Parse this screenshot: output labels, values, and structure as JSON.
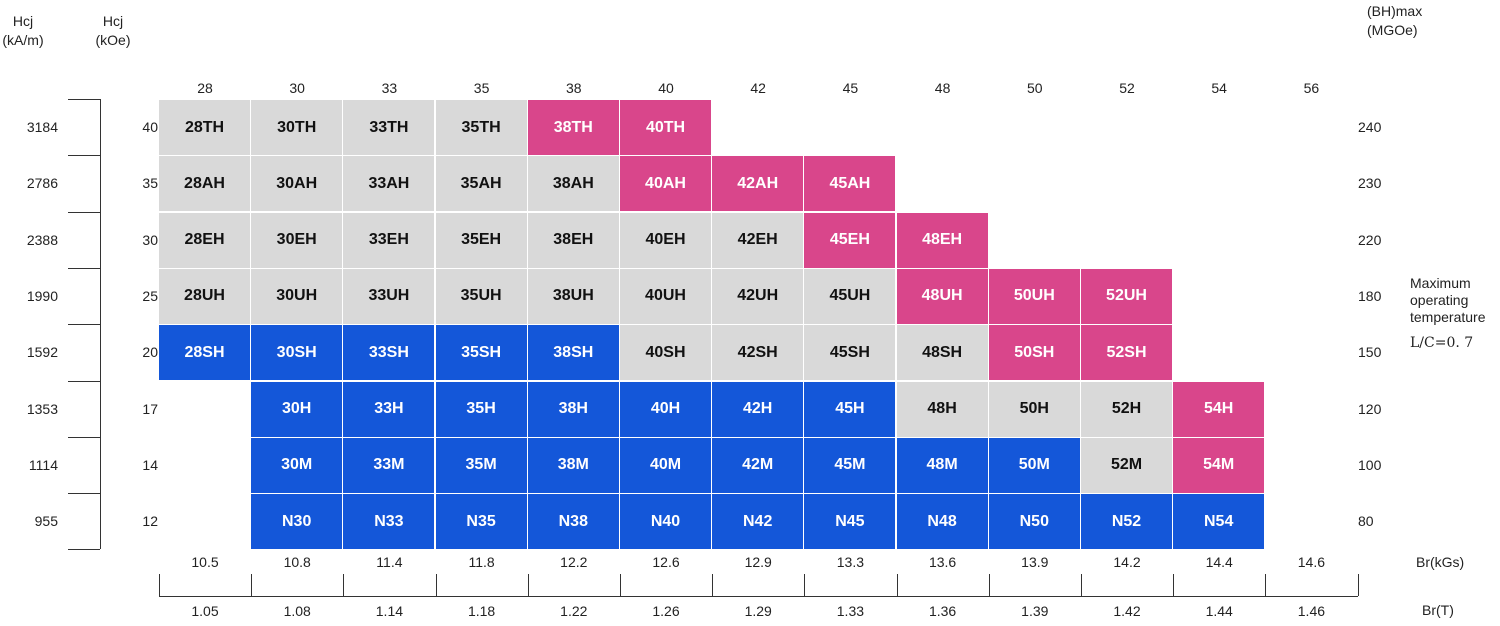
{
  "headers": {
    "hcj_ka": [
      "Hcj",
      "(kA/m)"
    ],
    "hcj_koe": [
      "Hcj",
      "(kOe)"
    ],
    "bhmax": [
      "(BH)max",
      "(MGOe)"
    ]
  },
  "top_labels": [
    "28",
    "30",
    "33",
    "35",
    "38",
    "40",
    "42",
    "45",
    "48",
    "50",
    "52",
    "54",
    "56"
  ],
  "rows": [
    {
      "ka": "3184",
      "koe": "40",
      "temp": "240"
    },
    {
      "ka": "2786",
      "koe": "35",
      "temp": "230"
    },
    {
      "ka": "2388",
      "koe": "30",
      "temp": "220"
    },
    {
      "ka": "1990",
      "koe": "25",
      "temp": "180"
    },
    {
      "ka": "1592",
      "koe": "20",
      "temp": "150"
    },
    {
      "ka": "1353",
      "koe": "17",
      "temp": "120"
    },
    {
      "ka": "1114",
      "koe": "14",
      "temp": "100"
    },
    {
      "ka": "955",
      "koe": "12",
      "temp": "80"
    }
  ],
  "cells": [
    {
      "label": "28TH",
      "row": 0,
      "col": 0,
      "color": "gray"
    },
    {
      "label": "30TH",
      "row": 0,
      "col": 1,
      "color": "gray"
    },
    {
      "label": "33TH",
      "row": 0,
      "col": 2,
      "color": "gray"
    },
    {
      "label": "35TH",
      "row": 0,
      "col": 3,
      "color": "gray"
    },
    {
      "label": "38TH",
      "row": 0,
      "col": 4,
      "color": "pink"
    },
    {
      "label": "40TH",
      "row": 0,
      "col": 5,
      "color": "pink"
    },
    {
      "label": "28AH",
      "row": 1,
      "col": 0,
      "color": "gray"
    },
    {
      "label": "30AH",
      "row": 1,
      "col": 1,
      "color": "gray"
    },
    {
      "label": "33AH",
      "row": 1,
      "col": 2,
      "color": "gray"
    },
    {
      "label": "35AH",
      "row": 1,
      "col": 3,
      "color": "gray"
    },
    {
      "label": "38AH",
      "row": 1,
      "col": 4,
      "color": "gray"
    },
    {
      "label": "40AH",
      "row": 1,
      "col": 5,
      "color": "pink"
    },
    {
      "label": "42AH",
      "row": 1,
      "col": 6,
      "color": "pink"
    },
    {
      "label": "45AH",
      "row": 1,
      "col": 7,
      "color": "pink"
    },
    {
      "label": "28EH",
      "row": 2,
      "col": 0,
      "color": "gray"
    },
    {
      "label": "30EH",
      "row": 2,
      "col": 1,
      "color": "gray"
    },
    {
      "label": "33EH",
      "row": 2,
      "col": 2,
      "color": "gray"
    },
    {
      "label": "35EH",
      "row": 2,
      "col": 3,
      "color": "gray"
    },
    {
      "label": "38EH",
      "row": 2,
      "col": 4,
      "color": "gray"
    },
    {
      "label": "40EH",
      "row": 2,
      "col": 5,
      "color": "gray"
    },
    {
      "label": "42EH",
      "row": 2,
      "col": 6,
      "color": "gray"
    },
    {
      "label": "45EH",
      "row": 2,
      "col": 7,
      "color": "pink"
    },
    {
      "label": "48EH",
      "row": 2,
      "col": 8,
      "color": "pink"
    },
    {
      "label": "28UH",
      "row": 3,
      "col": 0,
      "color": "gray"
    },
    {
      "label": "30UH",
      "row": 3,
      "col": 1,
      "color": "gray"
    },
    {
      "label": "33UH",
      "row": 3,
      "col": 2,
      "color": "gray"
    },
    {
      "label": "35UH",
      "row": 3,
      "col": 3,
      "color": "gray"
    },
    {
      "label": "38UH",
      "row": 3,
      "col": 4,
      "color": "gray"
    },
    {
      "label": "40UH",
      "row": 3,
      "col": 5,
      "color": "gray"
    },
    {
      "label": "42UH",
      "row": 3,
      "col": 6,
      "color": "gray"
    },
    {
      "label": "45UH",
      "row": 3,
      "col": 7,
      "color": "gray"
    },
    {
      "label": "48UH",
      "row": 3,
      "col": 8,
      "color": "pink"
    },
    {
      "label": "50UH",
      "row": 3,
      "col": 9,
      "color": "pink"
    },
    {
      "label": "52UH",
      "row": 3,
      "col": 10,
      "color": "pink"
    },
    {
      "label": "28SH",
      "row": 4,
      "col": 0,
      "color": "blue"
    },
    {
      "label": "30SH",
      "row": 4,
      "col": 1,
      "color": "blue"
    },
    {
      "label": "33SH",
      "row": 4,
      "col": 2,
      "color": "blue"
    },
    {
      "label": "35SH",
      "row": 4,
      "col": 3,
      "color": "blue"
    },
    {
      "label": "38SH",
      "row": 4,
      "col": 4,
      "color": "blue"
    },
    {
      "label": "40SH",
      "row": 4,
      "col": 5,
      "color": "gray"
    },
    {
      "label": "42SH",
      "row": 4,
      "col": 6,
      "color": "gray"
    },
    {
      "label": "45SH",
      "row": 4,
      "col": 7,
      "color": "gray"
    },
    {
      "label": "48SH",
      "row": 4,
      "col": 8,
      "color": "gray"
    },
    {
      "label": "50SH",
      "row": 4,
      "col": 9,
      "color": "pink"
    },
    {
      "label": "52SH",
      "row": 4,
      "col": 10,
      "color": "pink"
    },
    {
      "label": "30H",
      "row": 5,
      "col": 1,
      "color": "blue"
    },
    {
      "label": "33H",
      "row": 5,
      "col": 2,
      "color": "blue"
    },
    {
      "label": "35H",
      "row": 5,
      "col": 3,
      "color": "blue"
    },
    {
      "label": "38H",
      "row": 5,
      "col": 4,
      "color": "blue"
    },
    {
      "label": "40H",
      "row": 5,
      "col": 5,
      "color": "blue"
    },
    {
      "label": "42H",
      "row": 5,
      "col": 6,
      "color": "blue"
    },
    {
      "label": "45H",
      "row": 5,
      "col": 7,
      "color": "blue"
    },
    {
      "label": "48H",
      "row": 5,
      "col": 8,
      "color": "gray"
    },
    {
      "label": "50H",
      "row": 5,
      "col": 9,
      "color": "gray"
    },
    {
      "label": "52H",
      "row": 5,
      "col": 10,
      "color": "gray"
    },
    {
      "label": "54H",
      "row": 5,
      "col": 11,
      "color": "pink"
    },
    {
      "label": "30M",
      "row": 6,
      "col": 1,
      "color": "blue"
    },
    {
      "label": "33M",
      "row": 6,
      "col": 2,
      "color": "blue"
    },
    {
      "label": "35M",
      "row": 6,
      "col": 3,
      "color": "blue"
    },
    {
      "label": "38M",
      "row": 6,
      "col": 4,
      "color": "blue"
    },
    {
      "label": "40M",
      "row": 6,
      "col": 5,
      "color": "blue"
    },
    {
      "label": "42M",
      "row": 6,
      "col": 6,
      "color": "blue"
    },
    {
      "label": "45M",
      "row": 6,
      "col": 7,
      "color": "blue"
    },
    {
      "label": "48M",
      "row": 6,
      "col": 8,
      "color": "blue"
    },
    {
      "label": "50M",
      "row": 6,
      "col": 9,
      "color": "blue"
    },
    {
      "label": "52M",
      "row": 6,
      "col": 10,
      "color": "gray"
    },
    {
      "label": "54M",
      "row": 6,
      "col": 11,
      "color": "pink"
    },
    {
      "label": "N30",
      "row": 7,
      "col": 1,
      "color": "blue"
    },
    {
      "label": "N33",
      "row": 7,
      "col": 2,
      "color": "blue"
    },
    {
      "label": "N35",
      "row": 7,
      "col": 3,
      "color": "blue"
    },
    {
      "label": "N38",
      "row": 7,
      "col": 4,
      "color": "blue"
    },
    {
      "label": "N40",
      "row": 7,
      "col": 5,
      "color": "blue"
    },
    {
      "label": "N42",
      "row": 7,
      "col": 6,
      "color": "blue"
    },
    {
      "label": "N45",
      "row": 7,
      "col": 7,
      "color": "blue"
    },
    {
      "label": "N48",
      "row": 7,
      "col": 8,
      "color": "blue"
    },
    {
      "label": "N50",
      "row": 7,
      "col": 9,
      "color": "blue"
    },
    {
      "label": "N52",
      "row": 7,
      "col": 10,
      "color": "blue"
    },
    {
      "label": "N54",
      "row": 7,
      "col": 11,
      "color": "blue"
    }
  ],
  "br_kgs": [
    "10.5",
    "10.8",
    "11.4",
    "11.8",
    "12.2",
    "12.6",
    "12.9",
    "13.3",
    "13.6",
    "13.9",
    "14.2",
    "14.4",
    "14.6"
  ],
  "br_t": [
    "1.05",
    "1.08",
    "1.14",
    "1.18",
    "1.22",
    "1.26",
    "1.29",
    "1.33",
    "1.36",
    "1.39",
    "1.42",
    "1.44",
    "1.46"
  ],
  "br_kgs_label": "Br(kGs)",
  "br_t_label": "Br(T)",
  "side_note": [
    "Maximum",
    "operating",
    "temperature"
  ],
  "side_note_ratio": "L/C=0. 7",
  "colors": {
    "gray": "#d9d9d9",
    "pink": "#d9468b",
    "blue": "#1457d9"
  }
}
